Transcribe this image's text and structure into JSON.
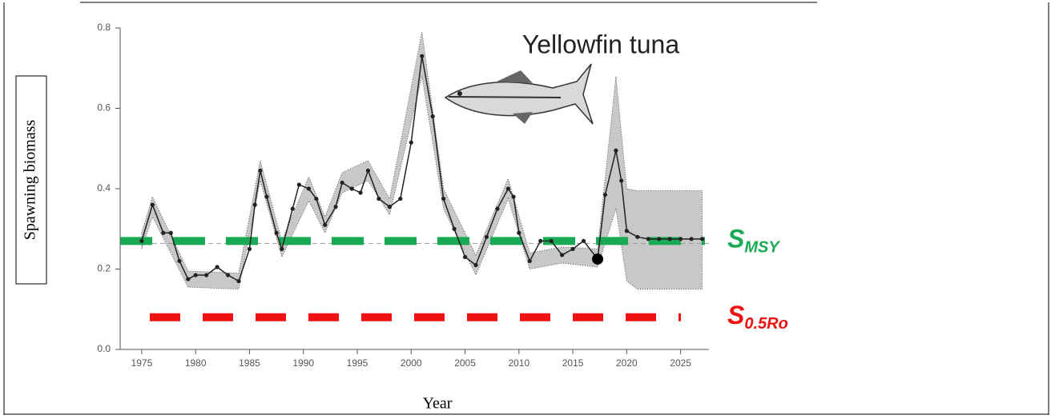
{
  "chart_data": {
    "type": "line",
    "ylabel": "Spawning biomass",
    "xlabel": "Year",
    "annotation": "Yellowfin tuna",
    "color": "#222222",
    "band_color": "#c8c8c8",
    "xlim": [
      1973,
      2028
    ],
    "ylim": [
      0,
      0.8
    ],
    "xticks": [
      1975,
      1980,
      1985,
      1990,
      1995,
      2000,
      2005,
      2010,
      2015,
      2020,
      2025
    ],
    "yticks": [
      {
        "value": 0,
        "label": "0.0"
      },
      0.2,
      0.4,
      0.6,
      0.8
    ],
    "x": [
      1975,
      1976,
      1977,
      1977.7,
      1978.5,
      1979.3,
      1980,
      1981,
      1982,
      1983,
      1984,
      1985,
      1985.5,
      1986,
      1986.6,
      1987.5,
      1988,
      1989,
      1989.6,
      1990.5,
      1991.2,
      1992,
      1993,
      1993.6,
      1994.5,
      1995.3,
      1996,
      1997,
      1998,
      1999,
      2000,
      2001,
      2002,
      2003,
      2004,
      2005,
      2006,
      2007,
      2008,
      2009,
      2009.5,
      2010,
      2011,
      2012,
      2013,
      2014,
      2015,
      2016,
      2017.3,
      2018,
      2019,
      2019.5,
      2020,
      2021,
      2022,
      2023,
      2024,
      2025,
      2026,
      2027
    ],
    "values": [
      0.27,
      0.36,
      0.29,
      0.29,
      0.22,
      0.175,
      0.185,
      0.185,
      0.205,
      0.185,
      0.17,
      0.25,
      0.36,
      0.445,
      0.38,
      0.29,
      0.25,
      0.35,
      0.41,
      0.4,
      0.375,
      0.31,
      0.355,
      0.415,
      0.4,
      0.39,
      0.445,
      0.375,
      0.355,
      0.375,
      0.515,
      0.73,
      0.58,
      0.375,
      0.3,
      0.23,
      0.21,
      0.28,
      0.35,
      0.4,
      0.38,
      0.29,
      0.22,
      0.27,
      0.27,
      0.235,
      0.25,
      0.27,
      0.225,
      0.385,
      0.495,
      0.42,
      0.295,
      0.28,
      0.275,
      0.275,
      0.275,
      0.275,
      0.275,
      0.275
    ],
    "band": {
      "x": [
        1975,
        1976,
        1979.3,
        1984,
        1986,
        1988,
        1990.5,
        1992,
        1993.6,
        1996,
        1998,
        2001,
        2003,
        2006,
        2009,
        2011,
        2014,
        2017.3,
        2019,
        2020,
        2021,
        2027
      ],
      "lower": [
        0.25,
        0.33,
        0.155,
        0.15,
        0.42,
        0.23,
        0.37,
        0.29,
        0.39,
        0.42,
        0.335,
        0.68,
        0.35,
        0.185,
        0.375,
        0.2,
        0.215,
        0.205,
        0.35,
        0.17,
        0.15,
        0.15
      ],
      "upper": [
        0.29,
        0.38,
        0.195,
        0.19,
        0.47,
        0.27,
        0.43,
        0.33,
        0.44,
        0.47,
        0.375,
        0.79,
        0.4,
        0.235,
        0.425,
        0.24,
        0.255,
        0.25,
        0.68,
        0.4,
        0.395,
        0.395
      ]
    },
    "current": {
      "x": 2017.3,
      "value": 0.225
    },
    "reference_lines": [
      {
        "label": "S",
        "sublabel": "MSY",
        "value": 0.27,
        "color": "#1aaa55"
      },
      {
        "label": "S",
        "sublabel": "0.5Ro",
        "value": 0.08,
        "color": "#ee1111"
      }
    ]
  }
}
